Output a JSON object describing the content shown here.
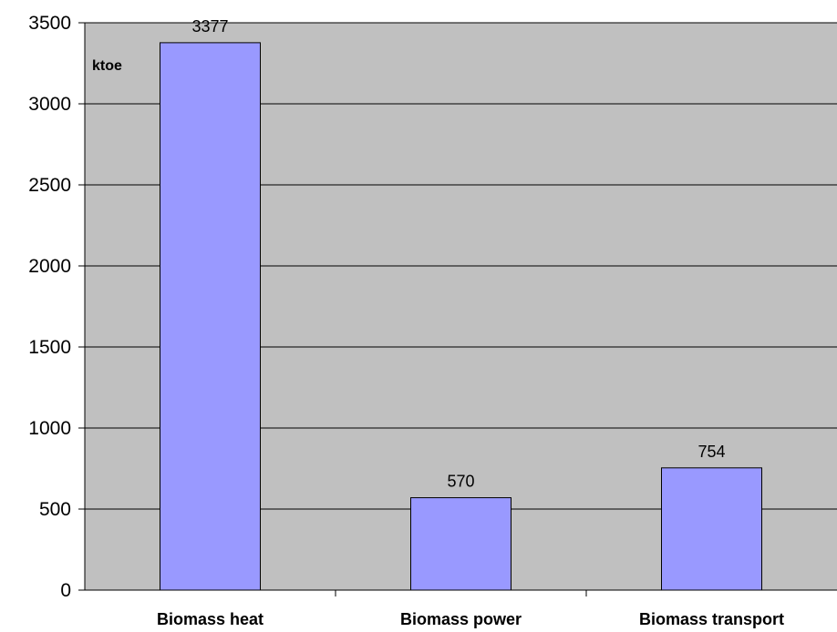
{
  "chart_data": {
    "type": "bar",
    "categories": [
      "Biomass heat",
      "Biomass power",
      "Biomass transport"
    ],
    "values": [
      3377,
      570,
      754
    ],
    "data_labels": [
      "3377",
      "570",
      "754"
    ],
    "ylabel": "ktoe",
    "ylim": [
      0,
      3500
    ],
    "yticks": [
      0,
      500,
      1000,
      1500,
      2000,
      2500,
      3000,
      3500
    ],
    "ytick_labels": [
      "0",
      "500",
      "1000",
      "1500",
      "2000",
      "2500",
      "3000",
      "3500"
    ],
    "grid": true,
    "legend": "none",
    "colors": {
      "plot_background": "#c0c0c0",
      "bar_fill": "#9999ff",
      "bar_stroke": "#000000",
      "grid": "#000000"
    }
  }
}
